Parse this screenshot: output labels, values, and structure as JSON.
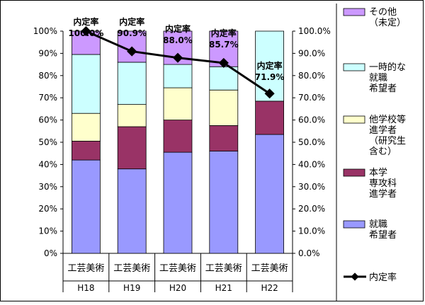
{
  "chart_data": {
    "type": "bar",
    "stacked": true,
    "percent_axis_left": true,
    "categories": [
      "工芸美術",
      "工芸美術",
      "工芸美術",
      "工芸美術",
      "工芸美術"
    ],
    "groups": [
      "H18",
      "H19",
      "H20",
      "H21",
      "H22"
    ],
    "y_left_ticks": [
      "0%",
      "10%",
      "20%",
      "30%",
      "40%",
      "50%",
      "60%",
      "70%",
      "80%",
      "90%",
      "100%"
    ],
    "y_right_ticks": [
      "0.0%",
      "10.0%",
      "20.0%",
      "30.0%",
      "40.0%",
      "50.0%",
      "60.0%",
      "70.0%",
      "80.0%",
      "90.0%",
      "100.0%"
    ],
    "ylim": [
      0,
      100
    ],
    "grid": false,
    "legend_position": "right",
    "series": [
      {
        "name": "就職\n希望者",
        "color": "#9999ff",
        "values": [
          42,
          38,
          45.5,
          46,
          53.5
        ]
      },
      {
        "name": "本学\n専攻科\n進学者",
        "color": "#993366",
        "values": [
          8.5,
          19,
          14.5,
          11.5,
          15
        ]
      },
      {
        "name": "他学校等\n進学者\n（研究生\n含む）",
        "color": "#ffffcc",
        "values": [
          12.5,
          10,
          14.5,
          16,
          0
        ]
      },
      {
        "name": "一時的な\n就職\n希望者",
        "color": "#ccffff",
        "values": [
          26.5,
          19,
          10.5,
          10.5,
          31.5
        ]
      },
      {
        "name": "その他\n（未定）",
        "color": "#cc99ff",
        "values": [
          10.5,
          14,
          15,
          16,
          0
        ]
      }
    ],
    "line_series": {
      "name": "内定率",
      "label_title": "内定率",
      "values": [
        100.0,
        90.9,
        88.0,
        85.7,
        71.9
      ],
      "value_labels": [
        "100.0%",
        "90.9%",
        "88.0%",
        "85.7%",
        "71.9%"
      ],
      "color": "#000000"
    }
  }
}
